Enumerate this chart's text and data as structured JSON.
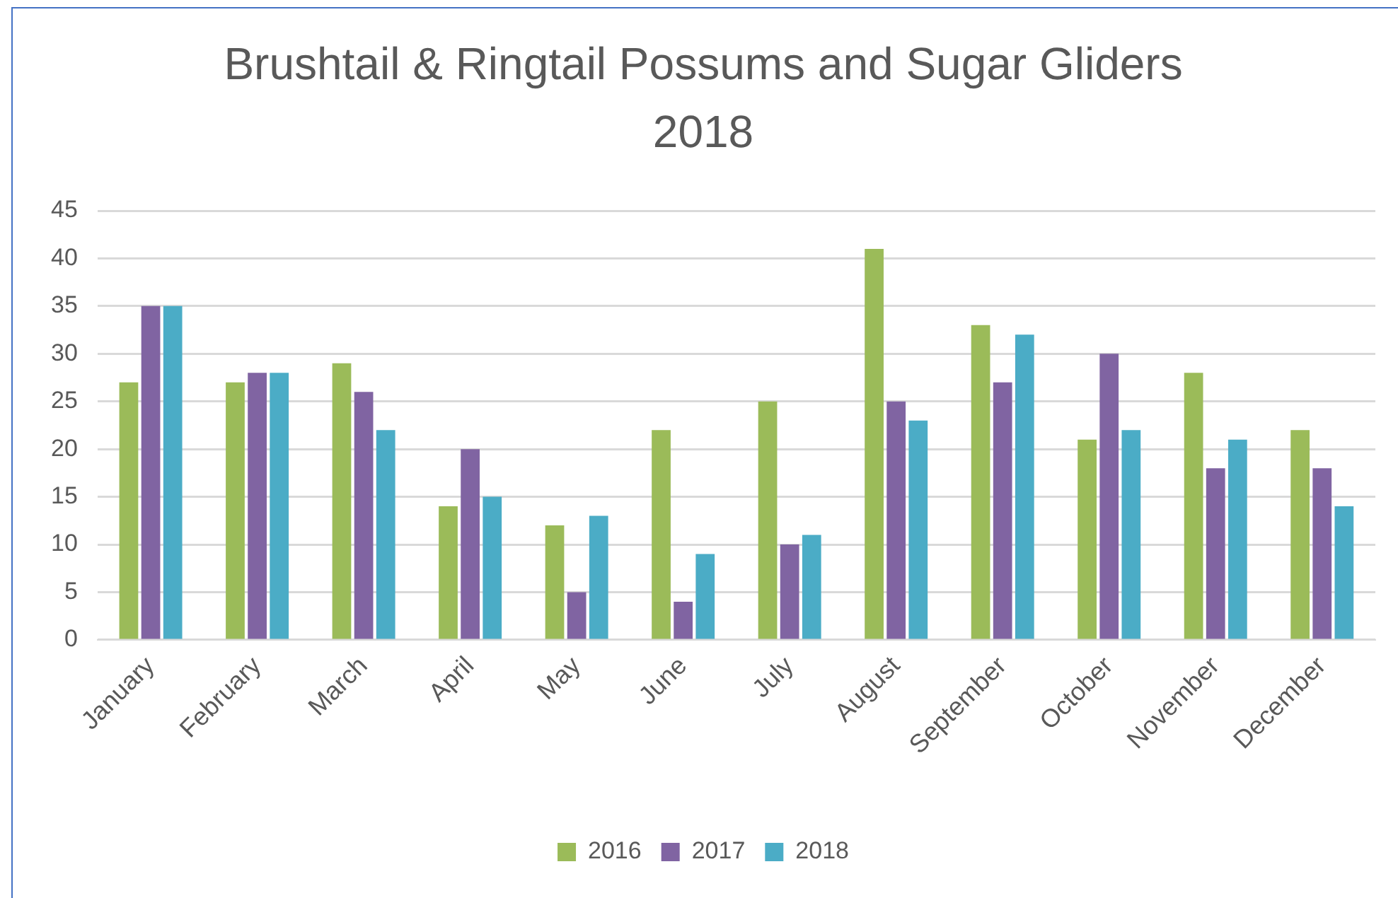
{
  "chart_data": {
    "type": "bar",
    "title": "Brushtail & Ringtail Possums and Sugar Gliders\n2018",
    "categories": [
      "January",
      "February",
      "March",
      "April",
      "May",
      "June",
      "July",
      "August",
      "September",
      "October",
      "November",
      "December"
    ],
    "series": [
      {
        "name": "2016",
        "color": "#9bbb59",
        "values": [
          27,
          27,
          29,
          14,
          12,
          22,
          25,
          41,
          33,
          21,
          28,
          22
        ]
      },
      {
        "name": "2017",
        "color": "#8064a2",
        "values": [
          35,
          28,
          26,
          20,
          5,
          4,
          10,
          25,
          27,
          30,
          18,
          18
        ]
      },
      {
        "name": "2018",
        "color": "#4bacc6",
        "values": [
          35,
          28,
          22,
          15,
          13,
          9,
          11,
          23,
          32,
          22,
          21,
          14
        ]
      }
    ],
    "ylim": [
      0,
      45
    ],
    "yticks": [
      0,
      5,
      10,
      15,
      20,
      25,
      30,
      35,
      40,
      45
    ],
    "grid": "y",
    "legend": "bottom"
  }
}
